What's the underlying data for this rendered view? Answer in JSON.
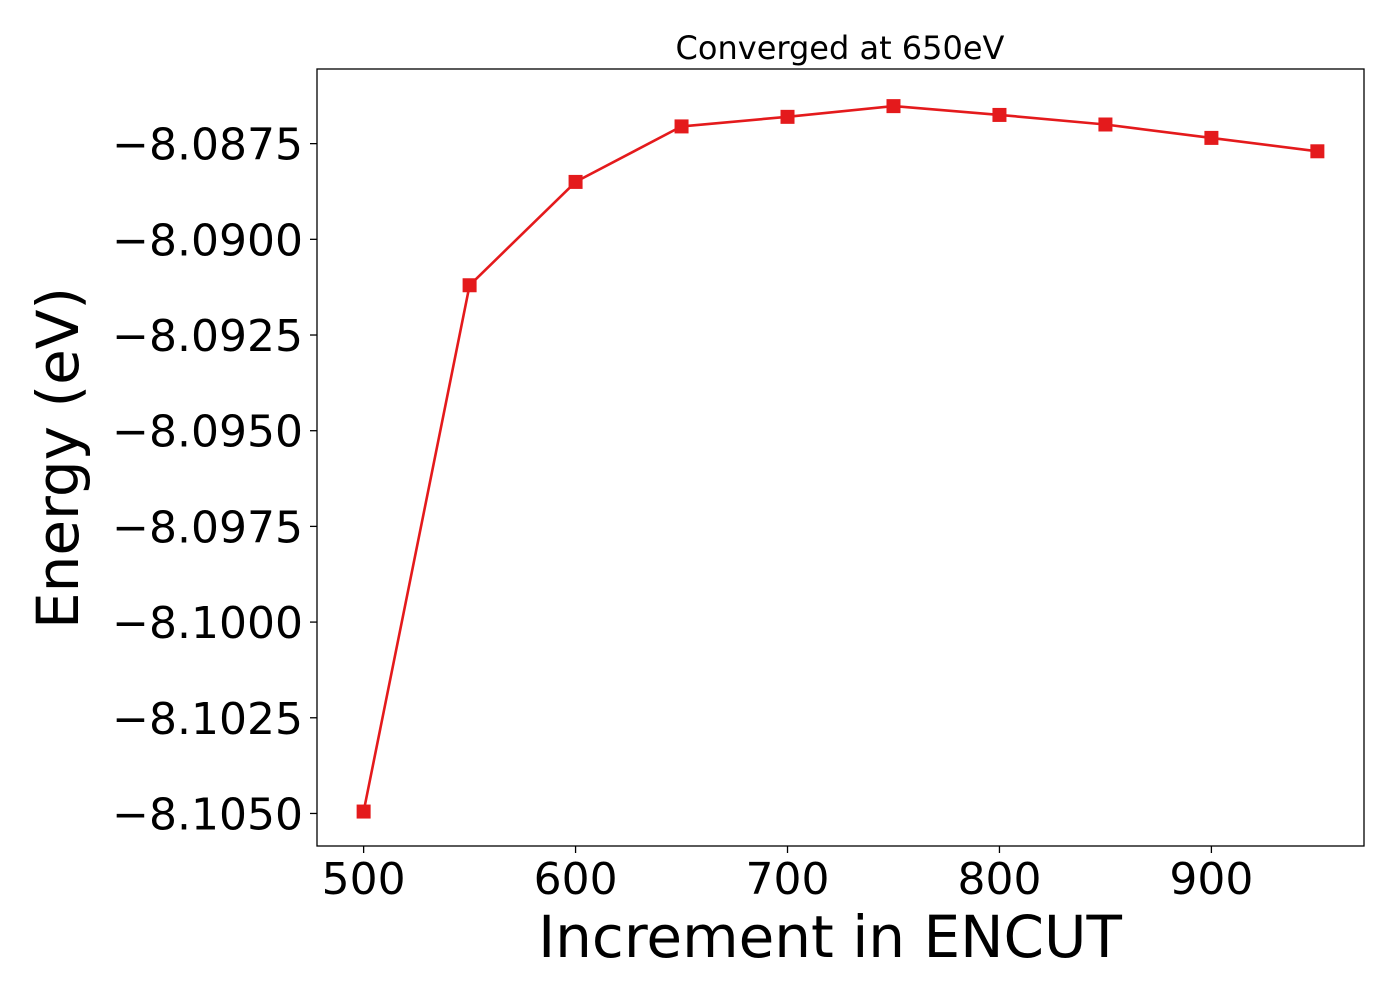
{
  "chart_data": {
    "type": "line",
    "title": "Converged at 650eV",
    "xlabel": "Increment in ENCUT",
    "ylabel": "Energy (eV)",
    "x": [
      500,
      550,
      600,
      650,
      700,
      750,
      800,
      850,
      900,
      950
    ],
    "series": [
      {
        "values": [
          -8.10495,
          -8.0912,
          -8.0885,
          -8.08705,
          -8.0868,
          -8.08652,
          -8.08675,
          -8.087,
          -8.08735,
          -8.0877
        ],
        "color": "#e41a1c",
        "marker": "square"
      }
    ],
    "xlim": [
      478,
      972
    ],
    "ylim": [
      -8.10585,
      -8.08555
    ],
    "xticks": [
      500,
      600,
      700,
      800,
      900
    ],
    "xtick_labels": [
      "500",
      "600",
      "700",
      "800",
      "900"
    ],
    "yticks": [
      -8.0875,
      -8.09,
      -8.0925,
      -8.095,
      -8.0975,
      -8.1,
      -8.1025,
      -8.105
    ],
    "ytick_labels": [
      "−8.0875",
      "−8.0900",
      "−8.0925",
      "−8.0950",
      "−8.0975",
      "−8.1000",
      "−8.1025",
      "−8.1050"
    ],
    "grid": false,
    "legend": "none"
  }
}
